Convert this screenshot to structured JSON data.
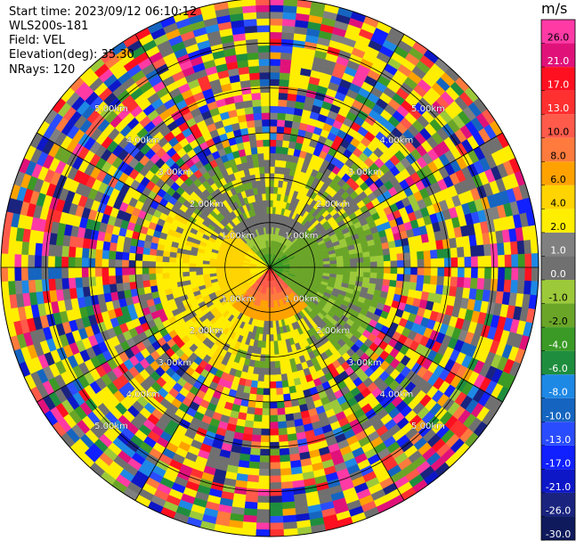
{
  "header": {
    "start_time": "Start time: 2023/09/12 06:10:12",
    "instrument": "WLS200s-181",
    "field": "Field: VEL",
    "elevation": "Elevation(deg): 35.30",
    "nrays": "NRays: 120"
  },
  "chart_data": {
    "type": "heatmap",
    "subtype": "ppi-polar",
    "field": "VEL",
    "n_rays": 120,
    "range_rings_km": [
      1.0,
      2.0,
      3.0,
      4.0,
      5.0
    ],
    "range_labels": [
      "1.00km",
      "2.00km",
      "3.00km",
      "4.00km",
      "5.00km"
    ],
    "max_range_km": 6.0,
    "colorbar": {
      "unit": "m/s",
      "bounds": [
        -30.0,
        -26.0,
        -21.0,
        -17.0,
        -13.0,
        -10.0,
        -8.0,
        -6.0,
        -4.0,
        -2.0,
        -1.0,
        0.0,
        1.0,
        2.0,
        4.0,
        6.0,
        8.0,
        10.0,
        13.0,
        17.0,
        21.0,
        26.0,
        30.0
      ],
      "tick_labels": [
        "-30.0",
        "-26.0",
        "-21.0",
        "-17.0",
        "-13.0",
        "-10.0",
        "-8.0",
        "-6.0",
        "-4.0",
        "-2.0",
        "-1.0",
        "0.0",
        "1.0",
        "2.0",
        "4.0",
        "6.0",
        "8.0",
        "10.0",
        "13.0",
        "17.0",
        "21.0",
        "26.0"
      ],
      "colors": [
        "#0e1a5c",
        "#1a237e",
        "#0d17c8",
        "#1020ff",
        "#2a4cff",
        "#1565c0",
        "#1e88e5",
        "#1e8e3e",
        "#3a9a25",
        "#6aa528",
        "#9cc93a",
        "#707070",
        "#808080",
        "#ffee00",
        "#ffd400",
        "#ffa200",
        "#ff7a3d",
        "#ff5a4a",
        "#ff3030",
        "#ff1020",
        "#e0127a",
        "#ff3aa5"
      ]
    },
    "structure": {
      "inner_range_km": 1.2,
      "inner_north": [
        -4,
        -2,
        -1,
        0
      ],
      "inner_south": [
        13,
        10,
        8,
        6
      ],
      "inner_east": [
        -4,
        -2
      ],
      "inner_west": [
        2,
        4
      ]
    }
  }
}
